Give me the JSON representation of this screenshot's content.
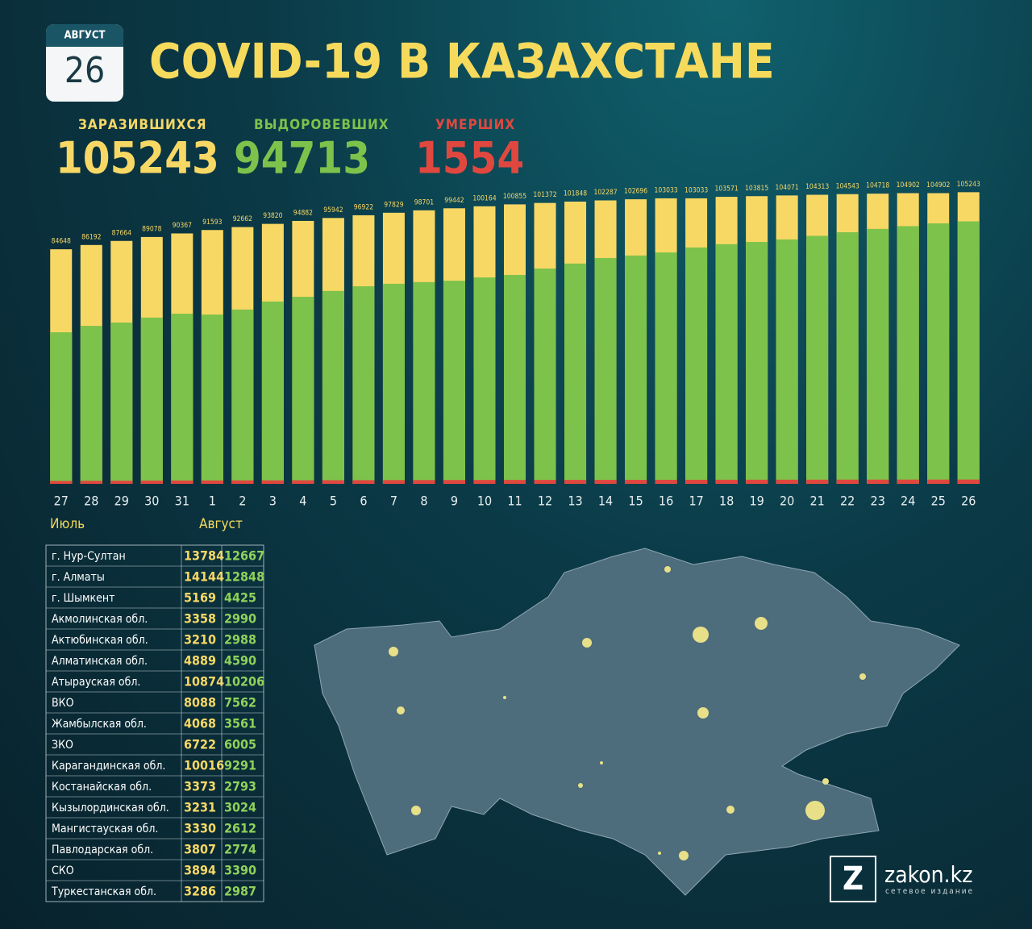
{
  "badge": {
    "month": "АВГУСТ",
    "day": "26"
  },
  "title": "COVID-19 В КАЗАХСТАНЕ",
  "chart_data": {
    "type": "bar",
    "mode": "overlay",
    "categories": [
      "27",
      "28",
      "29",
      "30",
      "31",
      "1",
      "2",
      "3",
      "4",
      "5",
      "6",
      "7",
      "8",
      "9",
      "10",
      "11",
      "12",
      "13",
      "14",
      "15",
      "16",
      "17",
      "18",
      "19",
      "20",
      "21",
      "22",
      "23",
      "24",
      "25",
      "26"
    ],
    "month_labels": [
      "Июль",
      "Август"
    ],
    "series": [
      {
        "name": "ЗАРАЗИВШИХСЯ",
        "color": "#f8d865",
        "values": [
          84648,
          86192,
          87664,
          89078,
          90367,
          91593,
          92662,
          93820,
          94882,
          95942,
          96922,
          97829,
          98701,
          99442,
          100164,
          100855,
          101372,
          101848,
          102287,
          102696,
          103033,
          103033,
          103571,
          103815,
          104071,
          104313,
          104543,
          104718,
          104902,
          104902,
          105243
        ],
        "show_labels": true
      },
      {
        "name": "ВЫДОРОВЕВШИХ",
        "color": "#7dc24b",
        "values": [
          54700,
          57000,
          58200,
          60000,
          61400,
          61100,
          62900,
          65800,
          67500,
          69600,
          71300,
          72200,
          72800,
          73300,
          74500,
          75400,
          77700,
          79500,
          81500,
          82400,
          83500,
          85300,
          86500,
          87300,
          88200,
          89500,
          90800,
          92000,
          93000,
          94000,
          94713
        ]
      },
      {
        "name": "УМЕРШИХ",
        "color": "#e0483f",
        "values": [
          1058,
          1100,
          1140,
          1180,
          1210,
          1230,
          1250,
          1270,
          1290,
          1310,
          1330,
          1350,
          1370,
          1390,
          1400,
          1410,
          1420,
          1430,
          1440,
          1450,
          1460,
          1470,
          1480,
          1490,
          1500,
          1510,
          1520,
          1530,
          1540,
          1545,
          1554
        ]
      }
    ],
    "ylim": [
      0,
      110000
    ]
  },
  "regions": {
    "rows": [
      [
        "г. Нур-Султан",
        "13784",
        "12667"
      ],
      [
        "г. Алматы",
        "14144",
        "12848"
      ],
      [
        "г. Шымкент",
        "5169",
        "4425"
      ],
      [
        "Акмолинская обл.",
        "3358",
        "2990"
      ],
      [
        "Актюбинская обл.",
        "3210",
        "2988"
      ],
      [
        "Алматинская обл.",
        "4889",
        "4590"
      ],
      [
        "Атырауская обл.",
        "10874",
        "10206"
      ],
      [
        "ВКО",
        "8088",
        "7562"
      ],
      [
        "Жамбылская обл.",
        "4068",
        "3561"
      ],
      [
        "ЗКО",
        "6722",
        "6005"
      ],
      [
        "Карагандинская обл.",
        "10016",
        "9291"
      ],
      [
        "Костанайская обл.",
        "3373",
        "2793"
      ],
      [
        "Кызылординская обл.",
        "3231",
        "3024"
      ],
      [
        "Мангистауская обл.",
        "3330",
        "2612"
      ],
      [
        "Павлодарская обл.",
        "3807",
        "2774"
      ],
      [
        "СКО",
        "3894",
        "3390"
      ],
      [
        "Туркестанская обл.",
        "3286",
        "2987"
      ]
    ]
  },
  "logo": {
    "mark": "Z",
    "name": "zakon.kz",
    "tagline": "сетевое издание"
  }
}
